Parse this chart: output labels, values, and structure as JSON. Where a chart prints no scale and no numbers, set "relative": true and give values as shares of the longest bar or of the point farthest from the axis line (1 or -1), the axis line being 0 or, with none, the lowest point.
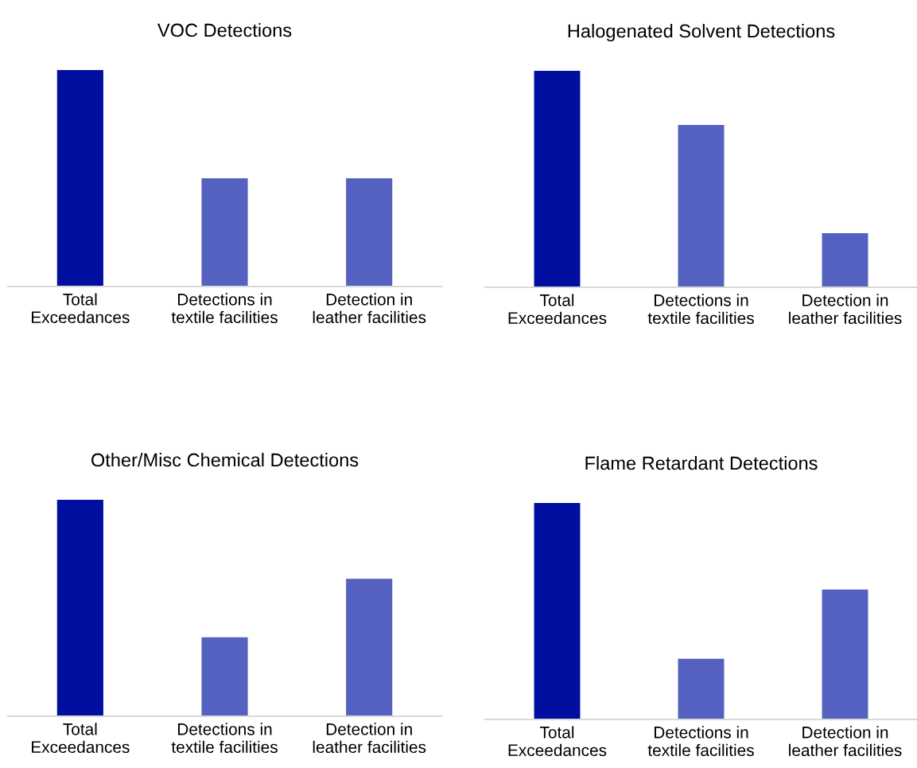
{
  "chart_data": [
    {
      "type": "bar",
      "title": "VOC Detections",
      "categories": [
        "Total\nExceedances",
        "Detections in\ntextile facilities",
        "Detection in\nleather facilities"
      ],
      "values": [
        1,
        0.5,
        0.5
      ],
      "colors": [
        "#000f9f",
        "#5561c0",
        "#5561c0"
      ],
      "relative": true
    },
    {
      "type": "bar",
      "title": "Halogenated Solvent Detections",
      "categories": [
        "Total\nExceedances",
        "Detections in\ntextile facilities",
        "Detection in\nleather facilities"
      ],
      "values": [
        1,
        0.75,
        0.25
      ],
      "colors": [
        "#000f9f",
        "#5561c0",
        "#5561c0"
      ],
      "relative": true
    },
    {
      "type": "bar",
      "title": "Other/Misc Chemical Detections",
      "categories": [
        "Total\nExceedances",
        "Detections in\ntextile facilities",
        "Detection in\nleather facilities"
      ],
      "values": [
        1,
        0.365,
        0.635
      ],
      "colors": [
        "#000f9f",
        "#5561c0",
        "#5561c0"
      ],
      "relative": true
    },
    {
      "type": "bar",
      "title": "Flame Retardant Detections",
      "categories": [
        "Total\nExceedances",
        "Detections in\ntextile facilities",
        "Detection in\nleather facilities"
      ],
      "values": [
        1,
        0.28,
        0.6
      ],
      "colors": [
        "#000f9f",
        "#5561c0",
        "#5561c0"
      ],
      "relative": true
    }
  ]
}
